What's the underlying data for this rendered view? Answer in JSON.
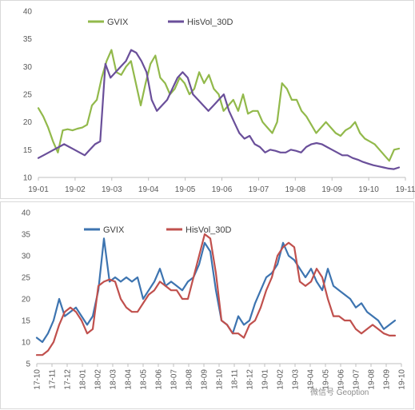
{
  "watermark": "微信号 Geoption",
  "chart_data": [
    {
      "type": "line",
      "title": "",
      "xlabel": "",
      "ylabel": "",
      "ylim": [
        10,
        40
      ],
      "yticks": [
        10,
        15,
        20,
        25,
        30,
        35,
        40
      ],
      "x_tick_labels": [
        "19-01",
        "19-02",
        "19-03",
        "19-04",
        "19-05",
        "19-06",
        "19-07",
        "19-08",
        "19-09",
        "19-10",
        "19-11"
      ],
      "legend": "top-left",
      "grid": false,
      "series": [
        {
          "name": "GVIX",
          "color": "#92b94b",
          "values": [
            22.5,
            21,
            19,
            16.5,
            14.5,
            18.5,
            18.7,
            18.5,
            18.8,
            19,
            19.5,
            23,
            24,
            28,
            31,
            33,
            29,
            28.5,
            30,
            31,
            27,
            23,
            27,
            30.5,
            32,
            28,
            27,
            25,
            26,
            28,
            27,
            25,
            26,
            29,
            27,
            28.5,
            26,
            25,
            22,
            23,
            24,
            22,
            25,
            21.5,
            22,
            22,
            20,
            19,
            18,
            20,
            27,
            26,
            24,
            24,
            22,
            21,
            19.5,
            18,
            19,
            20,
            19,
            18,
            17.5,
            18.5,
            19,
            20,
            18,
            17,
            16.5,
            16,
            15,
            14,
            13,
            15,
            15.2
          ]
        },
        {
          "name": "HisVol_30D",
          "color": "#6a4f9a",
          "values": [
            13.5,
            14,
            14.5,
            15,
            15.5,
            16,
            15.5,
            15,
            14.5,
            14,
            15,
            16,
            16.5,
            30.5,
            28,
            29,
            30,
            31,
            33,
            32.5,
            31,
            29,
            24,
            22,
            23,
            24,
            26,
            28,
            29,
            28,
            25,
            24,
            23,
            22,
            23,
            24,
            25,
            22,
            20,
            18,
            17,
            17.5,
            16,
            15.5,
            14.5,
            15,
            14.8,
            14.5,
            14.5,
            15,
            14.8,
            14.5,
            15.5,
            16,
            16.2,
            16,
            15.5,
            15,
            14.5,
            14,
            14,
            13.5,
            13.2,
            12.8,
            12.5,
            12.2,
            12,
            11.8,
            11.6,
            11.5,
            11.8
          ]
        }
      ]
    },
    {
      "type": "line",
      "title": "",
      "xlabel": "",
      "ylabel": "",
      "ylim": [
        5,
        40
      ],
      "yticks": [
        5,
        10,
        15,
        20,
        25,
        30,
        35,
        40
      ],
      "x_tick_labels": [
        "17-10",
        "17-11",
        "17-12",
        "18-01",
        "18-02",
        "18-03",
        "18-04",
        "18-05",
        "18-06",
        "18-07",
        "18-08",
        "18-09",
        "18-10",
        "18-11",
        "18-12",
        "19-01",
        "19-02",
        "19-03",
        "19-04",
        "19-05",
        "19-06",
        "19-07",
        "19-08",
        "19-09",
        "19-10"
      ],
      "legend": "top-left",
      "grid": false,
      "series": [
        {
          "name": "GVIX",
          "color": "#3d74b0",
          "values": [
            11,
            10,
            12,
            15,
            20,
            16,
            17,
            18,
            16,
            14,
            16,
            22,
            34,
            24,
            25,
            24,
            25,
            24,
            25,
            20,
            22,
            24,
            27,
            23,
            24,
            23,
            22,
            24,
            25,
            28,
            33,
            31,
            22,
            15,
            14,
            12,
            16,
            14,
            15,
            19,
            22,
            25,
            26,
            28,
            33,
            30,
            29,
            27,
            25,
            27,
            24,
            22,
            27,
            23,
            22,
            21,
            20,
            18,
            19,
            17,
            16,
            15,
            13,
            14,
            15
          ]
        },
        {
          "name": "HisVol_30D",
          "color": "#c0504d",
          "values": [
            7,
            7,
            8,
            10,
            14,
            17,
            18,
            17,
            15,
            12,
            13,
            23,
            24,
            24.5,
            24,
            20,
            18,
            17,
            17,
            19,
            21,
            22,
            24,
            23,
            22,
            22,
            20,
            20,
            25,
            30,
            35,
            34,
            26,
            15,
            14,
            12,
            12,
            11,
            14,
            15,
            18,
            22,
            25,
            30,
            32,
            33,
            32,
            24,
            23,
            24,
            27,
            25,
            20,
            16,
            16,
            15,
            15,
            13,
            12,
            13,
            14,
            13,
            12,
            11.5,
            11.5
          ]
        }
      ]
    }
  ]
}
